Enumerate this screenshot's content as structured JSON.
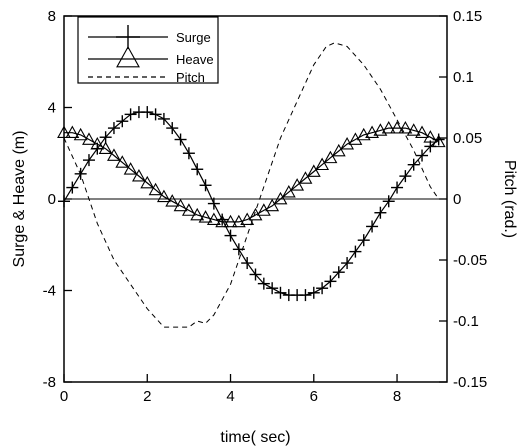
{
  "chart_data": {
    "type": "line",
    "xlabel": "time( sec)",
    "ylabel_left": "Surge & Heave (m)",
    "ylabel_right": "Pitch (rad.)",
    "xlim": [
      0,
      9.2
    ],
    "ylim_left": [
      -8,
      8
    ],
    "ylim_right": [
      -0.15,
      0.15
    ],
    "x_ticks": [
      "0",
      "2",
      "4",
      "6",
      "8"
    ],
    "y_left_ticks": [
      "-8",
      "-4",
      "0",
      "4",
      "8"
    ],
    "y_right_ticks": [
      "-0.15",
      "-0.1",
      "-0.05",
      "0",
      "0.05",
      "0.1",
      "0.15"
    ],
    "legend": {
      "position": "top-left",
      "entries": [
        "Surge",
        "Heave",
        "Pitch"
      ]
    },
    "series": [
      {
        "name": "Surge",
        "axis": "left",
        "marker": "plus",
        "line": "solid",
        "x": [
          0,
          0.2,
          0.4,
          0.6,
          0.8,
          1.0,
          1.2,
          1.4,
          1.6,
          1.8,
          2.0,
          2.2,
          2.4,
          2.6,
          2.8,
          3.0,
          3.2,
          3.4,
          3.6,
          3.8,
          4.0,
          4.2,
          4.4,
          4.6,
          4.8,
          5.0,
          5.2,
          5.4,
          5.6,
          5.8,
          6.0,
          6.2,
          6.4,
          6.6,
          6.8,
          7.0,
          7.2,
          7.4,
          7.6,
          7.8,
          8.0,
          8.2,
          8.4,
          8.6,
          8.8,
          9.0
        ],
        "values": [
          -0.1,
          0.5,
          1.1,
          1.7,
          2.2,
          2.7,
          3.1,
          3.4,
          3.7,
          3.8,
          3.8,
          3.7,
          3.5,
          3.1,
          2.6,
          2.0,
          1.3,
          0.6,
          -0.2,
          -0.9,
          -1.6,
          -2.2,
          -2.8,
          -3.3,
          -3.7,
          -3.9,
          -4.1,
          -4.2,
          -4.2,
          -4.2,
          -4.1,
          -3.9,
          -3.6,
          -3.2,
          -2.8,
          -2.3,
          -1.8,
          -1.2,
          -0.6,
          -0.1,
          0.5,
          1.0,
          1.5,
          1.9,
          2.3,
          2.6
        ]
      },
      {
        "name": "Heave",
        "axis": "left",
        "marker": "triangle",
        "line": "solid",
        "x": [
          0,
          0.2,
          0.4,
          0.6,
          0.8,
          1.0,
          1.2,
          1.4,
          1.6,
          1.8,
          2.0,
          2.2,
          2.4,
          2.6,
          2.8,
          3.0,
          3.2,
          3.4,
          3.6,
          3.8,
          4.0,
          4.2,
          4.4,
          4.6,
          4.8,
          5.0,
          5.2,
          5.4,
          5.6,
          5.8,
          6.0,
          6.2,
          6.4,
          6.6,
          6.8,
          7.0,
          7.2,
          7.4,
          7.6,
          7.8,
          8.0,
          8.2,
          8.4,
          8.6,
          8.8,
          9.0
        ],
        "values": [
          2.9,
          2.9,
          2.8,
          2.6,
          2.4,
          2.2,
          1.9,
          1.6,
          1.3,
          1.0,
          0.7,
          0.4,
          0.1,
          -0.1,
          -0.3,
          -0.5,
          -0.7,
          -0.8,
          -0.9,
          -1.0,
          -1.0,
          -1.0,
          -0.9,
          -0.7,
          -0.5,
          -0.3,
          0.0,
          0.3,
          0.6,
          0.9,
          1.2,
          1.5,
          1.8,
          2.1,
          2.4,
          2.6,
          2.8,
          2.9,
          3.0,
          3.1,
          3.1,
          3.1,
          3.0,
          2.9,
          2.7,
          2.5
        ]
      },
      {
        "name": "Pitch",
        "axis": "right",
        "line": "dashed",
        "x": [
          0,
          0.4,
          0.8,
          1.2,
          1.6,
          2.0,
          2.4,
          2.8,
          3.0,
          3.2,
          3.4,
          3.6,
          4.0,
          4.3,
          4.6,
          4.9,
          5.2,
          5.6,
          6.0,
          6.3,
          6.5,
          6.8,
          7.2,
          7.6,
          8.0,
          8.4,
          8.8,
          9.0
        ],
        "values": [
          0.05,
          0.02,
          -0.02,
          -0.05,
          -0.07,
          -0.09,
          -0.105,
          -0.105,
          -0.105,
          -0.1,
          -0.102,
          -0.095,
          -0.07,
          -0.04,
          -0.01,
          0.02,
          0.05,
          0.08,
          0.11,
          0.125,
          0.128,
          0.125,
          0.11,
          0.09,
          0.065,
          0.04,
          0.01,
          0.0
        ]
      }
    ]
  }
}
